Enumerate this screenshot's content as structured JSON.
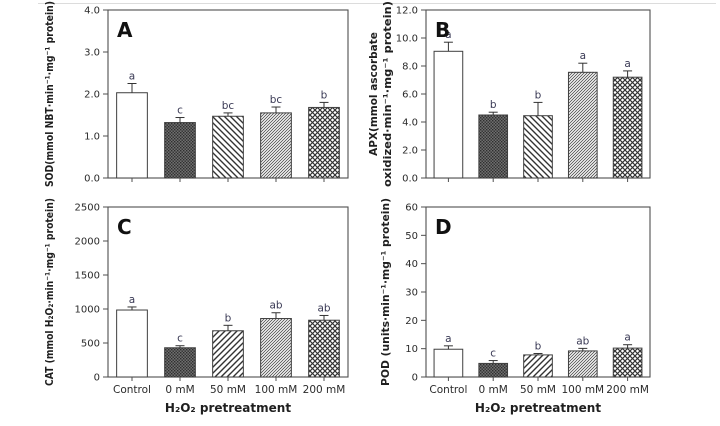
{
  "figure": {
    "x_axis_title": "H₂O₂ pretreatment",
    "categories": [
      "Control",
      "0 mM",
      "50 mM",
      "100 mM",
      "200 mM"
    ],
    "colors": {
      "background": "#ffffff",
      "axis": "#4f4f4f",
      "tick_text": "#2b2b2b",
      "ylabel_text": "#1f1f1f",
      "panel_letter": "#111111",
      "sig_letter": "#3a3a55",
      "bar_outline": "#3f3f3f",
      "error_bar": "#333333",
      "hatch": "#333333",
      "fine_hatch": "#4f4f4f",
      "dark_fill": "#6f6f6f",
      "dark_dot": "#2e2e2e",
      "top_rule": "#dcdcdc"
    }
  },
  "chart_data": [
    {
      "type": "bar",
      "panel_letter": "A",
      "ylabel_lines": [
        "SOD(mmol NBT·min⁻¹·mg⁻¹ protein)"
      ],
      "ylim": [
        0,
        4
      ],
      "yticks": [
        0,
        1,
        2,
        3,
        4
      ],
      "ytick_labels": [
        "0.0",
        "1.0",
        "2.0",
        "3.0",
        "4.0"
      ],
      "values": [
        2.03,
        1.32,
        1.47,
        1.55,
        1.68
      ],
      "errors": [
        0.22,
        0.12,
        0.08,
        0.14,
        0.12
      ],
      "sig_letters": [
        "a",
        "c",
        "bc",
        "bc",
        "b"
      ],
      "bar_patterns": [
        "open",
        "dense-dots",
        "hatch-down",
        "hatch-fine",
        "crosshatch"
      ],
      "show_x_labels": false,
      "grid": false
    },
    {
      "type": "bar",
      "panel_letter": "B",
      "ylabel_lines": [
        "APX(mmol ascorbate",
        "oxidized·min⁻¹·mg⁻¹ protein)"
      ],
      "ylim": [
        0,
        12
      ],
      "yticks": [
        0,
        2,
        4,
        6,
        8,
        10,
        12
      ],
      "ytick_labels": [
        "0.0",
        "2.0",
        "4.0",
        "6.0",
        "8.0",
        "10.0",
        "12.0"
      ],
      "values": [
        9.05,
        4.5,
        4.45,
        7.55,
        7.2
      ],
      "errors": [
        0.65,
        0.2,
        0.95,
        0.65,
        0.45
      ],
      "sig_letters": [
        "a",
        "b",
        "b",
        "a",
        "a"
      ],
      "bar_patterns": [
        "open",
        "dense-dots",
        "hatch-down",
        "hatch-fine",
        "crosshatch"
      ],
      "show_x_labels": false,
      "grid": false
    },
    {
      "type": "bar",
      "panel_letter": "C",
      "ylabel_lines": [
        "CAT (mmol H₂O₂·min⁻¹·mg⁻¹ protein)"
      ],
      "ylim": [
        0,
        2500
      ],
      "yticks": [
        0,
        500,
        1000,
        1500,
        2000,
        2500
      ],
      "ytick_labels": [
        "0",
        "500",
        "1000",
        "1500",
        "2000",
        "2500"
      ],
      "values": [
        985,
        430,
        680,
        860,
        835
      ],
      "errors": [
        45,
        30,
        80,
        85,
        70
      ],
      "sig_letters": [
        "a",
        "c",
        "b",
        "ab",
        "ab"
      ],
      "bar_patterns": [
        "open",
        "dense-dots",
        "hatch-up",
        "hatch-fine",
        "crosshatch"
      ],
      "show_x_labels": true,
      "grid": false
    },
    {
      "type": "bar",
      "panel_letter": "D",
      "ylabel_lines": [
        "POD (units·min⁻¹·mg⁻¹ protein)"
      ],
      "ylim": [
        0,
        60
      ],
      "yticks": [
        0,
        10,
        20,
        30,
        40,
        50,
        60
      ],
      "ytick_labels": [
        "0",
        "10",
        "20",
        "30",
        "40",
        "50",
        "60"
      ],
      "values": [
        9.8,
        4.8,
        7.8,
        9.2,
        10.2
      ],
      "errors": [
        1.2,
        1.0,
        0.5,
        0.9,
        1.2
      ],
      "sig_letters": [
        "a",
        "c",
        "b",
        "ab",
        "a"
      ],
      "bar_patterns": [
        "open",
        "dense-dots",
        "hatch-up",
        "hatch-fine",
        "crosshatch"
      ],
      "show_x_labels": true,
      "grid": false
    }
  ]
}
